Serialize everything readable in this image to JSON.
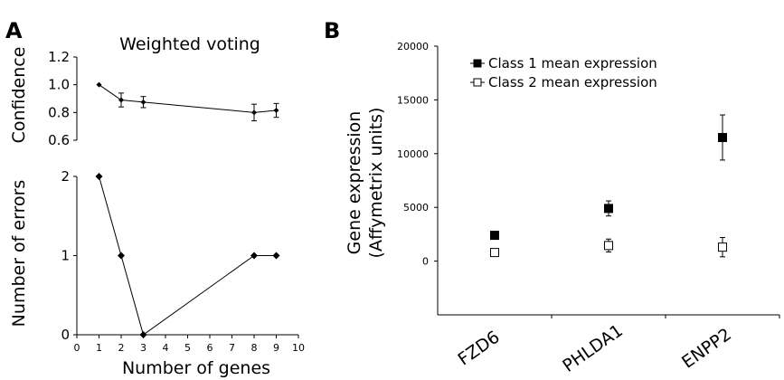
{
  "panel_a": {
    "letter": "A",
    "title": "Weighted voting",
    "x_label": "Number of genes",
    "top_y_label": "Confidence",
    "bottom_y_label": "Number of errors"
  },
  "panel_b": {
    "letter": "B",
    "y_label_line1": "Gene expression",
    "y_label_line2": "(Affymetrix units)"
  },
  "chart_data": [
    {
      "id": "confidence",
      "type": "line",
      "title": "Weighted voting",
      "xlabel": "",
      "ylabel": "Confidence",
      "xlim": [
        0,
        10
      ],
      "ylim": [
        0.6,
        1.2
      ],
      "yticks": [
        "0.6",
        "0.8",
        "1.0",
        "1.2"
      ],
      "x": [
        1,
        2,
        3,
        8,
        9
      ],
      "values": [
        1.0,
        0.89,
        0.875,
        0.8,
        0.815
      ],
      "errors": [
        0,
        0.05,
        0.04,
        0.06,
        0.05
      ]
    },
    {
      "id": "errors",
      "type": "line",
      "xlabel": "Number of genes",
      "ylabel": "Number of errors",
      "xlim": [
        0,
        10
      ],
      "ylim": [
        0,
        2
      ],
      "xticks": [
        "0",
        "1",
        "2",
        "3",
        "4",
        "5",
        "6",
        "7",
        "8",
        "9",
        "10"
      ],
      "yticks": [
        "0",
        "1",
        "2"
      ],
      "x": [
        1,
        2,
        3,
        8,
        9
      ],
      "values": [
        2,
        1,
        0,
        1,
        1
      ]
    },
    {
      "id": "expression",
      "type": "scatter",
      "ylabel": "Gene expression (Affymetrix units)",
      "ylim": [
        -5000,
        20000
      ],
      "yticks": [
        "0",
        "5000",
        "10000",
        "15000",
        "20000"
      ],
      "categories": [
        "FZD6",
        "PHLDA1",
        "ENPP2"
      ],
      "series": [
        {
          "name": "Class 1 mean expression",
          "values": [
            2400,
            4900,
            11500
          ],
          "errors": [
            0,
            700,
            2100
          ]
        },
        {
          "name": "Class 2 mean expression",
          "values": [
            800,
            1450,
            1300
          ],
          "errors": [
            0,
            600,
            900
          ]
        }
      ]
    }
  ]
}
